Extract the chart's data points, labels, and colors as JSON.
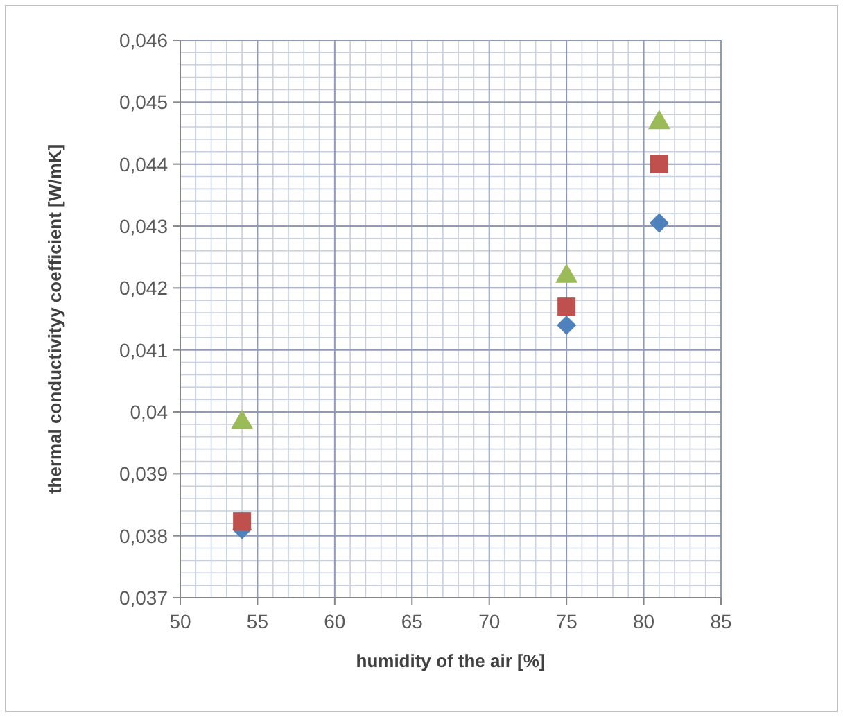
{
  "chart_data": {
    "type": "scatter",
    "xlabel": "humidity of the air [%]",
    "ylabel": "thermal conductivityy coefficient [W/mK]",
    "x": [
      54,
      75,
      81
    ],
    "series": [
      {
        "color": "#4f81bd",
        "marker": "diamond",
        "values": [
          0.0381,
          0.0414,
          0.04305
        ]
      },
      {
        "color": "#c0504d",
        "marker": "square",
        "values": [
          0.03823,
          0.0417,
          0.044
        ]
      },
      {
        "color": "#9bbb59",
        "marker": "triangle",
        "values": [
          0.03986,
          0.04222,
          0.0447
        ]
      }
    ],
    "xlim": [
      50,
      85
    ],
    "xticks": [
      50,
      55,
      60,
      65,
      70,
      75,
      80,
      85
    ],
    "ylim": [
      0.037,
      0.046
    ],
    "yticks": [
      {
        "value": 0.037,
        "label": "0,037"
      },
      {
        "value": 0.038,
        "label": "0,038"
      },
      {
        "value": 0.039,
        "label": "0,039"
      },
      {
        "value": 0.04,
        "label": "0,04"
      },
      {
        "value": 0.041,
        "label": "0,041"
      },
      {
        "value": 0.042,
        "label": "0,042"
      },
      {
        "value": 0.043,
        "label": "0,043"
      },
      {
        "value": 0.044,
        "label": "0,044"
      },
      {
        "value": 0.045,
        "label": "0,045"
      },
      {
        "value": 0.046,
        "label": "0,046"
      }
    ],
    "grid": true
  }
}
